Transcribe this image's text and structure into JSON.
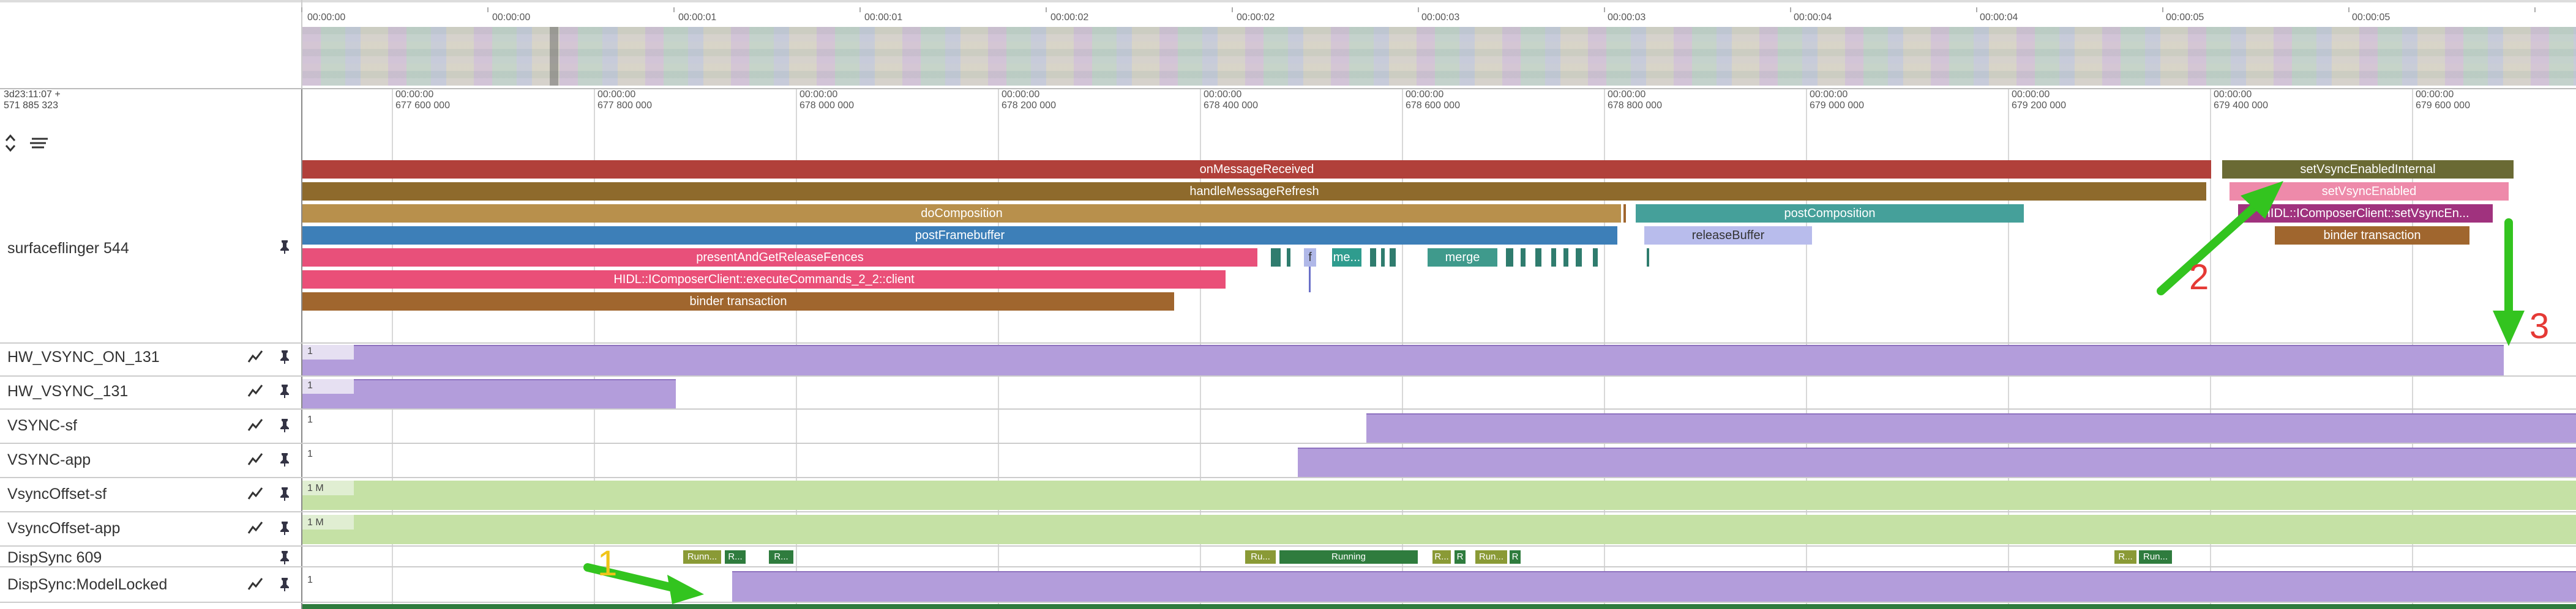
{
  "overview": {
    "ticks": [
      "00:00:00",
      "00:00:00",
      "00:00:01",
      "00:00:01",
      "00:00:02",
      "00:00:02",
      "00:00:03",
      "00:00:03",
      "00:00:04",
      "00:00:04",
      "00:00:05",
      "00:00:05"
    ]
  },
  "timebar": {
    "offset_line1": "3d23:11:07 +",
    "offset_line2": "571 885 323",
    "ticks": [
      {
        "l1": "00:00:00",
        "l2": "677 600 000"
      },
      {
        "l1": "00:00:00",
        "l2": "677 800 000"
      },
      {
        "l1": "00:00:00",
        "l2": "678 000 000"
      },
      {
        "l1": "00:00:00",
        "l2": "678 200 000"
      },
      {
        "l1": "00:00:00",
        "l2": "678 400 000"
      },
      {
        "l1": "00:00:00",
        "l2": "678 600 000"
      },
      {
        "l1": "00:00:00",
        "l2": "678 800 000"
      },
      {
        "l1": "00:00:00",
        "l2": "679 000 000"
      },
      {
        "l1": "00:00:00",
        "l2": "679 200 000"
      },
      {
        "l1": "00:00:00",
        "l2": "679 400 000"
      },
      {
        "l1": "00:00:00",
        "l2": "679 600 000"
      }
    ]
  },
  "process": {
    "name": "surfaceflinger 544"
  },
  "slices": {
    "onMessageReceived": "onMessageReceived",
    "handleMessageRefresh": "handleMessageRefresh",
    "doComposition": "doComposition",
    "postFramebuffer": "postFramebuffer",
    "presentAndGetReleaseFences": "presentAndGetReleaseFences",
    "executeCommands": "HIDL::IComposerClient::executeCommands_2_2::client",
    "binder1": "binder transaction",
    "f": "f",
    "me": "me...",
    "merge": "merge",
    "postComposition": "postComposition",
    "releaseBuffer": "releaseBuffer",
    "setVsyncEnabledInternal": "setVsyncEnabledInternal",
    "setVsyncEnabled": "setVsyncEnabled",
    "setVsyncEn": "HIDL::IComposerClient::setVsyncEn...",
    "binder2": "binder transaction"
  },
  "tracks": [
    {
      "name": "HW_VSYNC_ON_131",
      "value": "1"
    },
    {
      "name": "HW_VSYNC_131",
      "value": "1"
    },
    {
      "name": "VSYNC-sf",
      "value": "1"
    },
    {
      "name": "VSYNC-app",
      "value": "1"
    },
    {
      "name": "VsyncOffset-sf",
      "value": "1 M"
    },
    {
      "name": "VsyncOffset-app",
      "value": "1 M"
    },
    {
      "name": "DispSync 609",
      "value": ""
    },
    {
      "name": "DispSync:ModelLocked",
      "value": "1"
    }
  ],
  "dispsync_states": [
    "Runn...",
    "R...",
    "R...",
    "Ru...",
    "Running",
    "R...",
    "R",
    "Run...",
    "R",
    "R...",
    "Run..."
  ],
  "annotations": {
    "a1": "1",
    "a2": "2",
    "a3": "3"
  },
  "colors": {
    "purple": "#b39ddb",
    "green": "#c5e1a5",
    "arrow": "#33c41f"
  }
}
